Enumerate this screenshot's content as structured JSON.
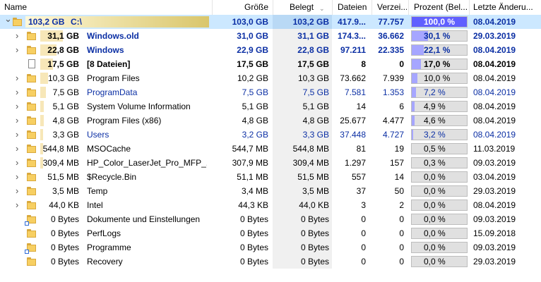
{
  "header": {
    "name": "Name",
    "groesse": "Größe",
    "belegt": "Belegt",
    "dateien": "Dateien",
    "verzeichnisse": "Verzei...",
    "prozent": "Prozent (Bel...",
    "letzte": "Letzte Änderu..."
  },
  "colors": {
    "selected_row": "#cce8ff",
    "pct_fill": "#a6a6ff",
    "pct_fill_full": "#6060ff",
    "size_bar_root": "#d9c66b",
    "size_bar": "#f7e7b8",
    "text_blue": "#0b2fa4"
  },
  "rows": [
    {
      "level": 0,
      "expand": "expanded",
      "icon": "folder-icon",
      "size_label": "103,2 GB",
      "name": "C:\\",
      "groesse": "103,0 GB",
      "belegt": "103,2 GB",
      "dateien": "417.9...",
      "verzeichnisse": "77.757",
      "prozent": "100,0 %",
      "pct": 1.0,
      "bar": 1.0,
      "datum": "08.04.2019",
      "style": "root"
    },
    {
      "level": 1,
      "expand": "collapsed",
      "icon": "folder-icon",
      "size_label": "31,1 GB",
      "name": "Windows.old",
      "groesse": "31,0 GB",
      "belegt": "31,1 GB",
      "dateien": "174.3...",
      "verzeichnisse": "36.662",
      "prozent": "30,1 %",
      "pct": 0.301,
      "bar": 0.301,
      "datum": "29.03.2019",
      "style": "bold-blue"
    },
    {
      "level": 1,
      "expand": "collapsed",
      "icon": "folder-icon",
      "size_label": "22,8 GB",
      "name": "Windows",
      "groesse": "22,9 GB",
      "belegt": "22,8 GB",
      "dateien": "97.211",
      "verzeichnisse": "22.335",
      "prozent": "22,1 %",
      "pct": 0.221,
      "bar": 0.221,
      "datum": "08.04.2019",
      "style": "bold-blue"
    },
    {
      "level": 1,
      "expand": "none",
      "icon": "file-icon",
      "size_label": "17,5 GB",
      "name": "[8 Dateien]",
      "groesse": "17,5 GB",
      "belegt": "17,5 GB",
      "dateien": "8",
      "verzeichnisse": "0",
      "prozent": "17,0 %",
      "pct": 0.17,
      "bar": 0.17,
      "datum": "08.04.2019",
      "style": "bold"
    },
    {
      "level": 1,
      "expand": "collapsed",
      "icon": "folder-icon",
      "size_label": "10,3 GB",
      "name": "Program Files",
      "groesse": "10,2 GB",
      "belegt": "10,3 GB",
      "dateien": "73.662",
      "verzeichnisse": "7.939",
      "prozent": "10,0 %",
      "pct": 0.1,
      "bar": 0.1,
      "datum": "08.04.2019",
      "style": "normal"
    },
    {
      "level": 1,
      "expand": "collapsed",
      "icon": "folder-icon",
      "size_label": "7,5 GB",
      "name": "ProgramData",
      "groesse": "7,5 GB",
      "belegt": "7,5 GB",
      "dateien": "7.581",
      "verzeichnisse": "1.353",
      "prozent": "7,2 %",
      "pct": 0.072,
      "bar": 0.072,
      "datum": "08.04.2019",
      "style": "blue"
    },
    {
      "level": 1,
      "expand": "collapsed",
      "icon": "folder-icon",
      "size_label": "5,1 GB",
      "name": "System Volume Information",
      "groesse": "5,1 GB",
      "belegt": "5,1 GB",
      "dateien": "14",
      "verzeichnisse": "6",
      "prozent": "4,9 %",
      "pct": 0.049,
      "bar": 0.049,
      "datum": "08.04.2019",
      "style": "normal"
    },
    {
      "level": 1,
      "expand": "collapsed",
      "icon": "folder-icon",
      "size_label": "4,8 GB",
      "name": "Program Files (x86)",
      "groesse": "4,8 GB",
      "belegt": "4,8 GB",
      "dateien": "25.677",
      "verzeichnisse": "4.477",
      "prozent": "4,6 %",
      "pct": 0.046,
      "bar": 0.046,
      "datum": "08.04.2019",
      "style": "normal"
    },
    {
      "level": 1,
      "expand": "collapsed",
      "icon": "folder-icon",
      "size_label": "3,3 GB",
      "name": "Users",
      "groesse": "3,2 GB",
      "belegt": "3,3 GB",
      "dateien": "37.448",
      "verzeichnisse": "4.727",
      "prozent": "3,2 %",
      "pct": 0.032,
      "bar": 0.032,
      "datum": "08.04.2019",
      "style": "blue"
    },
    {
      "level": 1,
      "expand": "collapsed",
      "icon": "folder-icon",
      "size_label": "544,8 MB",
      "name": "MSOCache",
      "groesse": "544,7 MB",
      "belegt": "544,8 MB",
      "dateien": "81",
      "verzeichnisse": "19",
      "prozent": "0,5 %",
      "pct": 0.005,
      "bar": 0.005,
      "datum": "11.03.2019",
      "style": "normal"
    },
    {
      "level": 1,
      "expand": "collapsed",
      "icon": "folder-icon",
      "size_label": "309,4 MB",
      "name": "HP_Color_LaserJet_Pro_MFP_...",
      "groesse": "307,9 MB",
      "belegt": "309,4 MB",
      "dateien": "1.297",
      "verzeichnisse": "157",
      "prozent": "0,3 %",
      "pct": 0.003,
      "bar": 0.003,
      "datum": "09.03.2019",
      "style": "normal"
    },
    {
      "level": 1,
      "expand": "collapsed",
      "icon": "folder-icon",
      "size_label": "51,5 MB",
      "name": "$Recycle.Bin",
      "groesse": "51,1 MB",
      "belegt": "51,5 MB",
      "dateien": "557",
      "verzeichnisse": "14",
      "prozent": "0,0 %",
      "pct": 0.0,
      "bar": 0.0,
      "datum": "03.04.2019",
      "style": "normal"
    },
    {
      "level": 1,
      "expand": "collapsed",
      "icon": "folder-icon",
      "size_label": "3,5 MB",
      "name": "Temp",
      "groesse": "3,4 MB",
      "belegt": "3,5 MB",
      "dateien": "37",
      "verzeichnisse": "50",
      "prozent": "0,0 %",
      "pct": 0.0,
      "bar": 0.0,
      "datum": "29.03.2019",
      "style": "normal"
    },
    {
      "level": 1,
      "expand": "collapsed",
      "icon": "folder-icon",
      "size_label": "44,0 KB",
      "name": "Intel",
      "groesse": "44,3 KB",
      "belegt": "44,0 KB",
      "dateien": "3",
      "verzeichnisse": "2",
      "prozent": "0,0 %",
      "pct": 0.0,
      "bar": 0.0,
      "datum": "08.04.2019",
      "style": "normal"
    },
    {
      "level": 1,
      "expand": "none",
      "icon": "folder-link-icon",
      "size_label": "0 Bytes",
      "name": "Dokumente und Einstellungen",
      "groesse": "0 Bytes",
      "belegt": "0 Bytes",
      "dateien": "0",
      "verzeichnisse": "0",
      "prozent": "0,0 %",
      "pct": 0.0,
      "bar": 0.0,
      "datum": "09.03.2019",
      "style": "normal"
    },
    {
      "level": 1,
      "expand": "none",
      "icon": "folder-icon",
      "size_label": "0 Bytes",
      "name": "PerfLogs",
      "groesse": "0 Bytes",
      "belegt": "0 Bytes",
      "dateien": "0",
      "verzeichnisse": "0",
      "prozent": "0,0 %",
      "pct": 0.0,
      "bar": 0.0,
      "datum": "15.09.2018",
      "style": "normal"
    },
    {
      "level": 1,
      "expand": "none",
      "icon": "folder-link-icon",
      "size_label": "0 Bytes",
      "name": "Programme",
      "groesse": "0 Bytes",
      "belegt": "0 Bytes",
      "dateien": "0",
      "verzeichnisse": "0",
      "prozent": "0,0 %",
      "pct": 0.0,
      "bar": 0.0,
      "datum": "09.03.2019",
      "style": "normal"
    },
    {
      "level": 1,
      "expand": "none",
      "icon": "folder-icon",
      "size_label": "0 Bytes",
      "name": "Recovery",
      "groesse": "0 Bytes",
      "belegt": "0 Bytes",
      "dateien": "0",
      "verzeichnisse": "0",
      "prozent": "0,0 %",
      "pct": 0.0,
      "bar": 0.0,
      "datum": "29.03.2019",
      "style": "normal"
    }
  ]
}
